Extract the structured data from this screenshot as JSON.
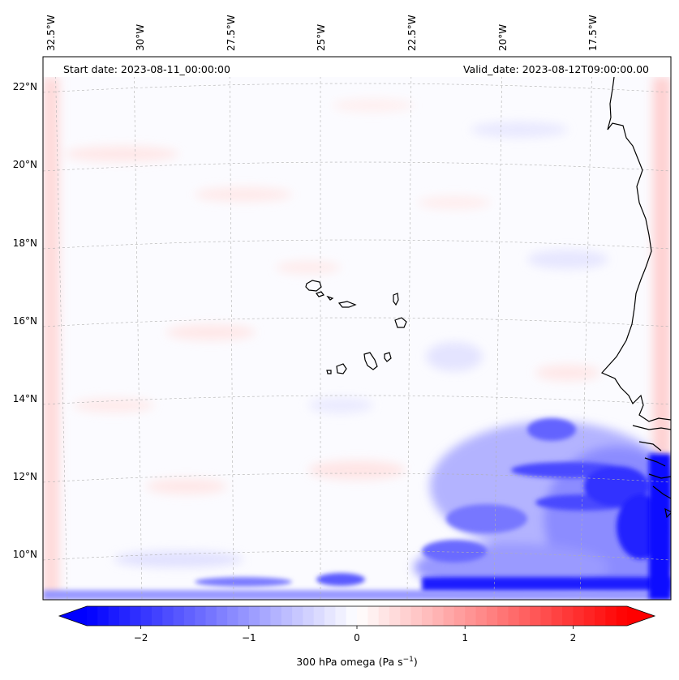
{
  "map": {
    "start_date": "Start date: 2023-08-11_00:00:00",
    "valid_date": "Valid_date: 2023-08-12T09:00:00.00",
    "lon_ticks": [
      "32.5°W",
      "30°W",
      "27.5°W",
      "25°W",
      "22.5°W",
      "20°W",
      "17.5°W"
    ],
    "lat_ticks": [
      "22°N",
      "20°N",
      "18°N",
      "16°N",
      "14°N",
      "12°N",
      "10°N"
    ],
    "coastline_color": "#000000",
    "gridline_color": "#b0b0b0"
  },
  "colorbar": {
    "label_main": "300 hPa omega (Pa s",
    "label_sup": "−1",
    "label_end": ")",
    "ticks": [
      "−2",
      "−1",
      "0",
      "1",
      "2"
    ],
    "tick_values": [
      -2,
      -1,
      0,
      1,
      2
    ],
    "vmin": -2.5,
    "vmax": 2.5,
    "extend": "both",
    "cmap": "bwr",
    "color_low": "#0000ff",
    "color_mid": "#ffffff",
    "color_high": "#ff0000"
  }
}
